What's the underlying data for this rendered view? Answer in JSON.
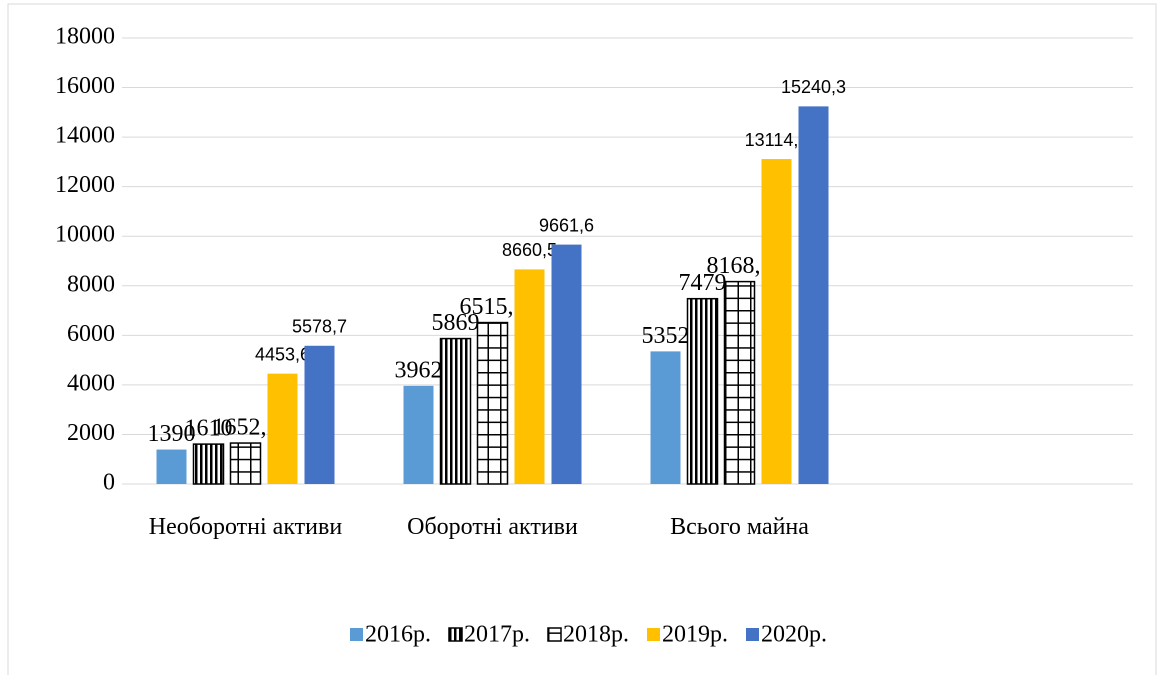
{
  "chart_data": {
    "type": "bar",
    "categories": [
      "Необоротні активи",
      "Оборотні активи",
      "Всього майна"
    ],
    "series": [
      {
        "name": "2016р.",
        "color": "#5b9bd5",
        "values": [
          1390,
          3962,
          5352
        ]
      },
      {
        "name": "2017р.",
        "color": "#000000",
        "pattern": "vertical",
        "values": [
          1610,
          5869,
          7479
        ]
      },
      {
        "name": "2018р.",
        "color": "#000000",
        "pattern": "grid",
        "values": [
          1652.7,
          6515.6,
          8168.3
        ],
        "value_labels": [
          "1652,7",
          "6515,6",
          "8168,3"
        ]
      },
      {
        "name": "2019р.",
        "color": "#ffc000",
        "values": [
          4453.6,
          8660.5,
          13114.1
        ],
        "value_labels": [
          "4453,6",
          "8660,5",
          "13114,1"
        ]
      },
      {
        "name": "2020р.",
        "color": "#4472c4",
        "values": [
          5578.7,
          9661.6,
          15240.3
        ],
        "value_labels": [
          "5578,7",
          "9661,6",
          "15240,3"
        ]
      }
    ],
    "ylim": [
      0,
      18000
    ],
    "yticks": [
      0,
      2000,
      4000,
      6000,
      8000,
      10000,
      12000,
      14000,
      16000,
      18000
    ],
    "grid": true,
    "legend": "bottom"
  }
}
